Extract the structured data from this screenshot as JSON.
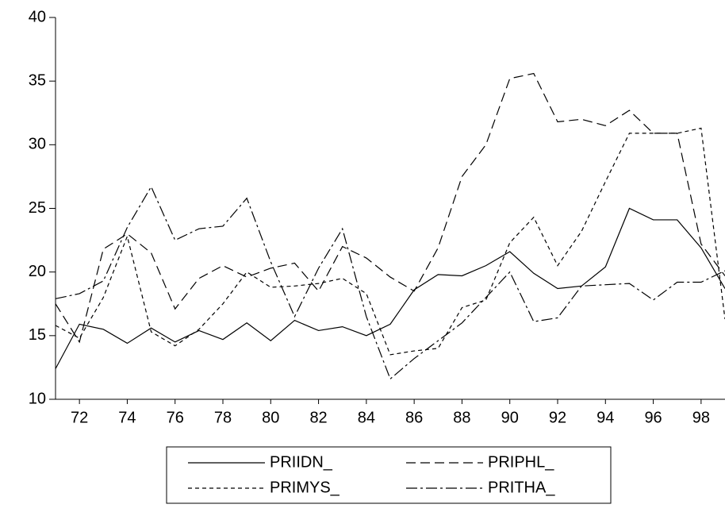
{
  "chart_data": {
    "type": "line",
    "x": [
      71,
      72,
      73,
      74,
      75,
      76,
      77,
      78,
      79,
      80,
      81,
      82,
      83,
      84,
      85,
      86,
      87,
      88,
      89,
      90,
      91,
      92,
      93,
      94,
      95,
      96,
      97,
      98,
      99
    ],
    "xlim": [
      71,
      99
    ],
    "xticks": [
      72,
      74,
      76,
      78,
      80,
      82,
      84,
      86,
      88,
      90,
      92,
      94,
      96,
      98
    ],
    "ylim": [
      10,
      40
    ],
    "yticks": [
      10,
      15,
      20,
      25,
      30,
      35,
      40
    ],
    "series": [
      {
        "name": "PRIIDN_",
        "color": "#000000",
        "dash": "none",
        "values": [
          12.4,
          15.9,
          15.5,
          14.4,
          15.6,
          14.5,
          15.4,
          14.7,
          16.0,
          14.6,
          16.2,
          15.4,
          15.7,
          15.0,
          15.9,
          18.6,
          19.8,
          19.7,
          20.5,
          21.6,
          19.9,
          18.7,
          18.9,
          20.4,
          25.0,
          24.1,
          24.1,
          21.9,
          18.7
        ]
      },
      {
        "name": "PRIPHL_",
        "color": "#000000",
        "dash": "12,6",
        "values": [
          17.5,
          14.5,
          21.8,
          23.0,
          21.5,
          17.1,
          19.5,
          20.5,
          19.6,
          20.3,
          20.7,
          18.5,
          22.0,
          21.1,
          19.6,
          18.5,
          21.9,
          27.5,
          30.0,
          35.2,
          35.6,
          31.8,
          32.0,
          31.5,
          32.7,
          30.9,
          30.9,
          22.2,
          19.7
        ]
      },
      {
        "name": "PRIMYS_",
        "color": "#000000",
        "dash": "5,4",
        "values": [
          15.8,
          14.8,
          18.0,
          22.8,
          15.3,
          14.2,
          15.5,
          17.5,
          20.0,
          18.8,
          18.9,
          19.1,
          19.5,
          18.3,
          13.5,
          13.8,
          14.0,
          17.2,
          17.8,
          22.3,
          24.3,
          20.5,
          23.2,
          27.1,
          30.9,
          30.9,
          30.9,
          31.3,
          16.3
        ]
      },
      {
        "name": "PRITHA_",
        "color": "#000000",
        "dash": "14,4,3,4",
        "values": [
          17.9,
          18.3,
          19.3,
          23.5,
          26.7,
          22.5,
          23.4,
          23.6,
          25.8,
          20.8,
          16.5,
          20.3,
          23.4,
          16.5,
          11.6,
          13.2,
          14.6,
          16.0,
          18.0,
          20.0,
          16.1,
          16.4,
          18.9,
          19.0,
          19.1,
          17.8,
          19.2,
          19.2,
          20.1
        ]
      }
    ]
  }
}
